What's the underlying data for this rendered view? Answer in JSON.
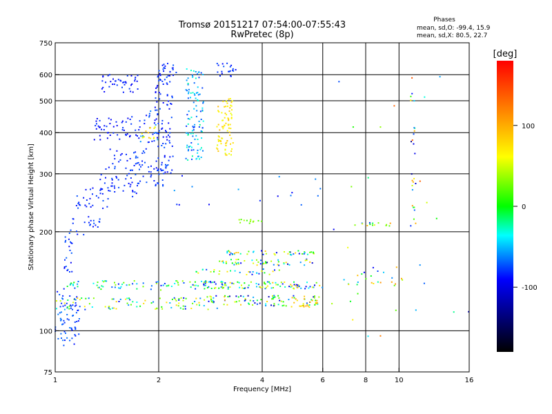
{
  "chart_data": {
    "type": "scatter",
    "title": "Tromsø 20151217 07:54:00-07:55:43",
    "subtitle": "RwPretec (8p)",
    "xlabel": "Frequency [MHz]",
    "ylabel": "Stationary phase Virtual Height [km]",
    "x_scale": "log",
    "y_scale": "log",
    "xlim": [
      1,
      16
    ],
    "ylim": [
      75,
      750
    ],
    "x_ticks": [
      1,
      2,
      4,
      6,
      8,
      10,
      16
    ],
    "y_ticks": [
      75,
      100,
      200,
      300,
      400,
      500,
      600,
      750
    ],
    "x_gridlines": [
      2,
      4,
      6,
      8,
      10
    ],
    "y_gridlines": [
      100,
      200,
      300,
      400,
      500,
      600
    ],
    "grid": true,
    "stats": {
      "title": "Phases",
      "line_o": "mean, sd,O: -99.4, 15.9",
      "line_x": "mean, sd,X:  80.5, 22.7"
    },
    "colorbar": {
      "label": "[deg]",
      "range": [
        -180,
        180
      ],
      "ticks": [
        100,
        0,
        -100
      ],
      "stops": [
        "#ff0000",
        "#ffa000",
        "#ffff00",
        "#00ff00",
        "#00ffff",
        "#0000ff",
        "#000000"
      ]
    },
    "clusters": [
      {
        "x": [
          1.0,
          1.18
        ],
        "y": [
          90,
          135
        ],
        "n": 70,
        "c": [
          -100,
          -70
        ]
      },
      {
        "x": [
          1.05,
          1.12
        ],
        "y": [
          150,
          195
        ],
        "n": 20,
        "c": [
          -105,
          -75
        ]
      },
      {
        "x": [
          1.1,
          1.35
        ],
        "y": [
          195,
          225
        ],
        "n": 22,
        "c": [
          -100,
          -80
        ]
      },
      {
        "x": [
          1.15,
          1.45
        ],
        "y": [
          235,
          275
        ],
        "n": 30,
        "c": [
          -100,
          -80
        ]
      },
      {
        "x": [
          1.35,
          1.75
        ],
        "y": [
          255,
          300
        ],
        "n": 35,
        "c": [
          -100,
          -80
        ]
      },
      {
        "x": [
          1.6,
          2.1
        ],
        "y": [
          275,
          325
        ],
        "n": 38,
        "c": [
          -100,
          -80
        ]
      },
      {
        "x": [
          1.4,
          1.85
        ],
        "y": [
          310,
          360
        ],
        "n": 28,
        "c": [
          -100,
          -80
        ]
      },
      {
        "x": [
          1.3,
          1.8
        ],
        "y": [
          380,
          450
        ],
        "n": 50,
        "c": [
          -105,
          -85
        ]
      },
      {
        "x": [
          1.35,
          1.75
        ],
        "y": [
          530,
          600
        ],
        "n": 40,
        "c": [
          -105,
          -85
        ]
      },
      {
        "x": [
          1.75,
          2.0
        ],
        "y": [
          350,
          470
        ],
        "n": 28,
        "c": [
          -100,
          -60
        ]
      },
      {
        "x": [
          1.78,
          1.98
        ],
        "y": [
          365,
          420
        ],
        "n": 14,
        "c": [
          60,
          110
        ]
      },
      {
        "x": [
          1.95,
          2.2
        ],
        "y": [
          300,
          620
        ],
        "n": 90,
        "c": [
          -105,
          -80
        ]
      },
      {
        "x": [
          2.0,
          2.25
        ],
        "y": [
          560,
          650
        ],
        "n": 20,
        "c": [
          -100,
          -80
        ]
      },
      {
        "x": [
          2.4,
          2.7
        ],
        "y": [
          330,
          630
        ],
        "n": 110,
        "c": [
          -90,
          -20
        ]
      },
      {
        "x": [
          2.95,
          3.3
        ],
        "y": [
          340,
          510
        ],
        "n": 80,
        "c": [
          70,
          110
        ]
      },
      {
        "x": [
          2.95,
          3.35
        ],
        "y": [
          590,
          650
        ],
        "n": 20,
        "c": [
          -100,
          -80
        ]
      },
      {
        "x": [
          1.0,
          3.0
        ],
        "y": [
          116,
          126
        ],
        "n": 90,
        "c": [
          -100,
          100
        ]
      },
      {
        "x": [
          1.0,
          3.2
        ],
        "y": [
          133,
          142
        ],
        "n": 90,
        "c": [
          -100,
          60
        ]
      },
      {
        "x": [
          2.5,
          5.9
        ],
        "y": [
          119,
          128
        ],
        "n": 90,
        "c": [
          -130,
          110
        ]
      },
      {
        "x": [
          2.7,
          6.0
        ],
        "y": [
          134,
          141
        ],
        "n": 90,
        "c": [
          -120,
          110
        ]
      },
      {
        "x": [
          3.0,
          5.8
        ],
        "y": [
          158,
          165
        ],
        "n": 50,
        "c": [
          -140,
          110
        ]
      },
      {
        "x": [
          3.0,
          5.8
        ],
        "y": [
          170,
          175
        ],
        "n": 45,
        "c": [
          -120,
          110
        ]
      },
      {
        "x": [
          4.8,
          5.8
        ],
        "y": [
          117,
          125
        ],
        "n": 20,
        "c": [
          90,
          120
        ]
      },
      {
        "x": [
          2.5,
          4.5
        ],
        "y": [
          148,
          154
        ],
        "n": 30,
        "c": [
          -110,
          100
        ]
      },
      {
        "x": [
          3.3,
          4.0
        ],
        "y": [
          212,
          218
        ],
        "n": 12,
        "c": [
          10,
          60
        ]
      },
      {
        "x": [
          7.4,
          9.5
        ],
        "y": [
          208,
          213
        ],
        "n": 14,
        "c": [
          -100,
          130
        ]
      },
      {
        "x": [
          7.0,
          10.5
        ],
        "y": [
          137,
          157
        ],
        "n": 22,
        "c": [
          -110,
          130
        ]
      },
      {
        "x": [
          10.8,
          11.2
        ],
        "y": [
          180,
          600
        ],
        "n": 26,
        "c": [
          -140,
          170
        ]
      },
      {
        "x": [
          6.0,
          16.0
        ],
        "y": [
          95,
          600
        ],
        "n": 28,
        "c": [
          -120,
          170
        ]
      },
      {
        "x": [
          2.2,
          6.0
        ],
        "y": [
          240,
          300
        ],
        "n": 16,
        "c": [
          -110,
          -60
        ]
      }
    ]
  }
}
